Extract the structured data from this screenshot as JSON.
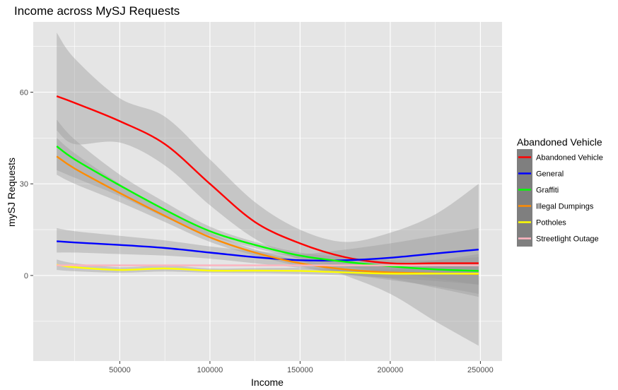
{
  "chart_data": {
    "type": "line",
    "title": "Income across MySJ Requests",
    "xlabel": "Income",
    "ylabel": "mySJ Requests",
    "xlim": [
      2000,
      262000
    ],
    "ylim": [
      -28,
      83
    ],
    "x_ticks": [
      50000,
      100000,
      150000,
      200000,
      250000
    ],
    "y_ticks": [
      0,
      30,
      60
    ],
    "x_tick_labels": [
      "50000",
      "100000",
      "150000",
      "200000",
      "250000"
    ],
    "y_tick_labels": [
      "0",
      "30",
      "60"
    ],
    "grid": true,
    "legend_position": "right",
    "legend_title": "Abandoned Vehicle",
    "x": [
      15000,
      25000,
      50000,
      75000,
      100000,
      125000,
      150000,
      175000,
      200000,
      225000,
      249000
    ],
    "series": [
      {
        "name": "Abandoned Vehicle",
        "color": "#ff0000",
        "values": [
          58.7,
          56.5,
          50.5,
          43,
          30,
          17.5,
          10.5,
          6,
          4,
          4,
          4
        ],
        "band_lower": [
          47.5,
          43,
          43.5,
          36,
          23,
          12,
          5,
          0,
          -6,
          -15,
          -23
        ],
        "band_upper": [
          79.5,
          71,
          58,
          52,
          38,
          24,
          15,
          11,
          14,
          20,
          30
        ]
      },
      {
        "name": "General",
        "color": "#0000ff",
        "values": [
          11.2,
          10.8,
          10,
          9,
          7.5,
          6,
          5,
          5,
          5.8,
          7.2,
          8.5
        ],
        "band_lower": [
          7.5,
          7.5,
          7,
          6.5,
          5.5,
          4,
          2.5,
          0.5,
          -1,
          -4,
          -7
        ],
        "band_upper": [
          15.5,
          14.5,
          13,
          11.5,
          9.5,
          8,
          7,
          8.5,
          10.5,
          13,
          15.5
        ]
      },
      {
        "name": "Graffiti",
        "color": "#00ff00",
        "values": [
          42.3,
          38,
          29.5,
          21.5,
          14.5,
          10,
          6.5,
          4.5,
          3,
          2,
          1.5
        ],
        "band_lower": [
          34.5,
          32,
          26,
          19,
          13,
          9,
          5.5,
          3,
          1,
          -1,
          -3
        ],
        "band_upper": [
          51,
          44.5,
          33,
          24,
          16,
          11,
          7.5,
          6,
          5,
          5,
          6
        ]
      },
      {
        "name": "Illegal Dumpings",
        "color": "#ff8c00",
        "values": [
          39,
          35,
          27,
          19.5,
          12.5,
          7.5,
          4,
          2,
          1,
          0.7,
          0.5
        ],
        "band_lower": [
          33,
          30,
          24,
          17.5,
          11,
          6.5,
          3,
          0.5,
          -1.5,
          -3.5,
          -6
        ],
        "band_upper": [
          45,
          40,
          30,
          21.5,
          14,
          8.5,
          5,
          3.5,
          3.5,
          5,
          7
        ]
      },
      {
        "name": "Potholes",
        "color": "#ffff00",
        "values": [
          3.5,
          2.7,
          1.8,
          2.3,
          1.6,
          1.6,
          1.5,
          1,
          0.6,
          0.6,
          0.6
        ],
        "band_lower": [
          1.8,
          1.4,
          0.9,
          1.3,
          0.9,
          0.8,
          0.5,
          0,
          -0.8,
          -1.8,
          -3
        ],
        "band_upper": [
          5.2,
          4,
          2.7,
          3.3,
          2.3,
          2.4,
          2.5,
          2,
          2,
          3,
          4.2
        ]
      },
      {
        "name": "Streetlight Outage",
        "color": "#ffb6c1",
        "values": [
          3.3,
          3.3,
          3.3,
          3.3,
          3.3,
          3.3,
          3.3,
          3.3,
          3.3,
          3.3,
          3.3
        ],
        "band_lower": [
          3,
          3,
          3,
          3,
          3,
          3,
          3,
          3,
          3,
          3,
          3
        ],
        "band_upper": [
          3.6,
          3.6,
          3.6,
          3.6,
          3.6,
          3.6,
          3.6,
          3.6,
          3.6,
          3.6,
          3.6
        ]
      }
    ]
  },
  "colors": {
    "panel_background": "#e5e5e5",
    "grid": "#ffffff",
    "confidence_band": "#999999",
    "legend_key_background": "#7f7f7f"
  }
}
